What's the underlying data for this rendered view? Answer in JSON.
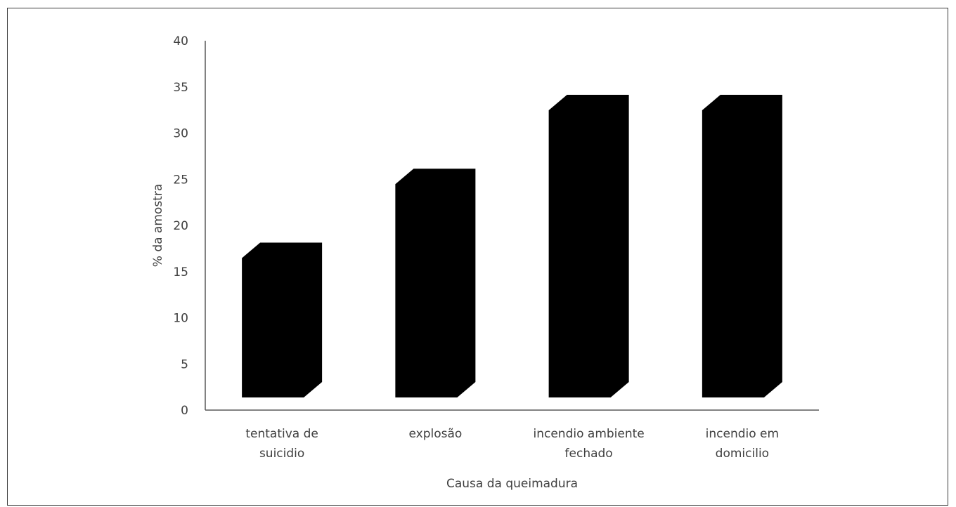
{
  "chart_data": {
    "type": "bar",
    "title": "",
    "xlabel": "Causa da queimadura",
    "ylabel": "% da amostra",
    "categories": [
      [
        "tentativa de",
        "suicidio"
      ],
      [
        "explosão"
      ],
      [
        "incendio ambiente",
        "fechado"
      ],
      [
        "incendio em",
        "domicilio"
      ]
    ],
    "values": [
      17,
      25,
      33,
      33
    ],
    "ylim": [
      0,
      40
    ],
    "yticks": [
      "0",
      "5",
      "10",
      "15",
      "20",
      "25",
      "30",
      "35",
      "40"
    ],
    "grid": false,
    "bar_color": "#000000",
    "axis_color": "#595959"
  }
}
